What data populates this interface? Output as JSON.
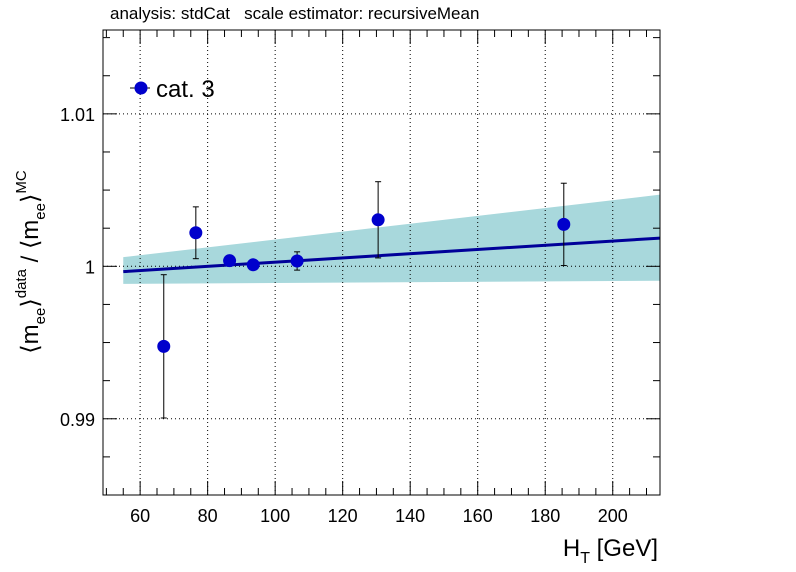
{
  "chart_data": {
    "type": "scatter",
    "title": "analysis: stdCat   scale estimator: recursiveMean",
    "xlabel": {
      "main": "H",
      "sub": "T",
      "unit": "[GeV]"
    },
    "ylabel": {
      "l1": "⟨m",
      "s1sub": "ee",
      "s1sup": "⟩",
      "sup1": "data",
      "sep": " / ⟨m",
      "s2sub": "ee",
      "s2sup": "⟩",
      "sup2": "MC"
    },
    "xlim": [
      49,
      214
    ],
    "ylim": [
      0.985,
      1.0155
    ],
    "xticks": [
      60,
      80,
      100,
      120,
      140,
      160,
      180,
      200
    ],
    "xtick_labels": [
      "60",
      "80",
      "100",
      "120",
      "140",
      "160",
      "180",
      "200"
    ],
    "yticks": [
      0.99,
      1.0,
      1.01
    ],
    "ytick_labels": [
      "0.99",
      "1",
      "1.01"
    ],
    "grid": true,
    "legend": {
      "position": "top-left",
      "entries": [
        {
          "label": "cat. 3",
          "color": "#0000cc"
        }
      ]
    },
    "series": [
      {
        "name": "cat. 3",
        "color": "#0000cc",
        "points": [
          {
            "x": 67.0,
            "y": 0.99475,
            "err": 0.0047
          },
          {
            "x": 76.5,
            "y": 1.0022,
            "err": 0.0017
          },
          {
            "x": 86.5,
            "y": 1.00037,
            "err": 0.00015
          },
          {
            "x": 93.5,
            "y": 1.0001,
            "err": 0.0001
          },
          {
            "x": 106.5,
            "y": 1.00035,
            "err": 0.0006
          },
          {
            "x": 130.5,
            "y": 1.00305,
            "err": 0.0025
          },
          {
            "x": 185.5,
            "y": 1.00275,
            "err": 0.0027
          }
        ]
      }
    ],
    "fit": {
      "color": "#000099",
      "band_color": "#a8d8dc",
      "x": [
        55,
        214
      ],
      "y": [
        0.99965,
        1.00185
      ],
      "band_lo": [
        0.99885,
        0.99905
      ],
      "band_hi": [
        1.0006,
        1.0047
      ]
    }
  }
}
